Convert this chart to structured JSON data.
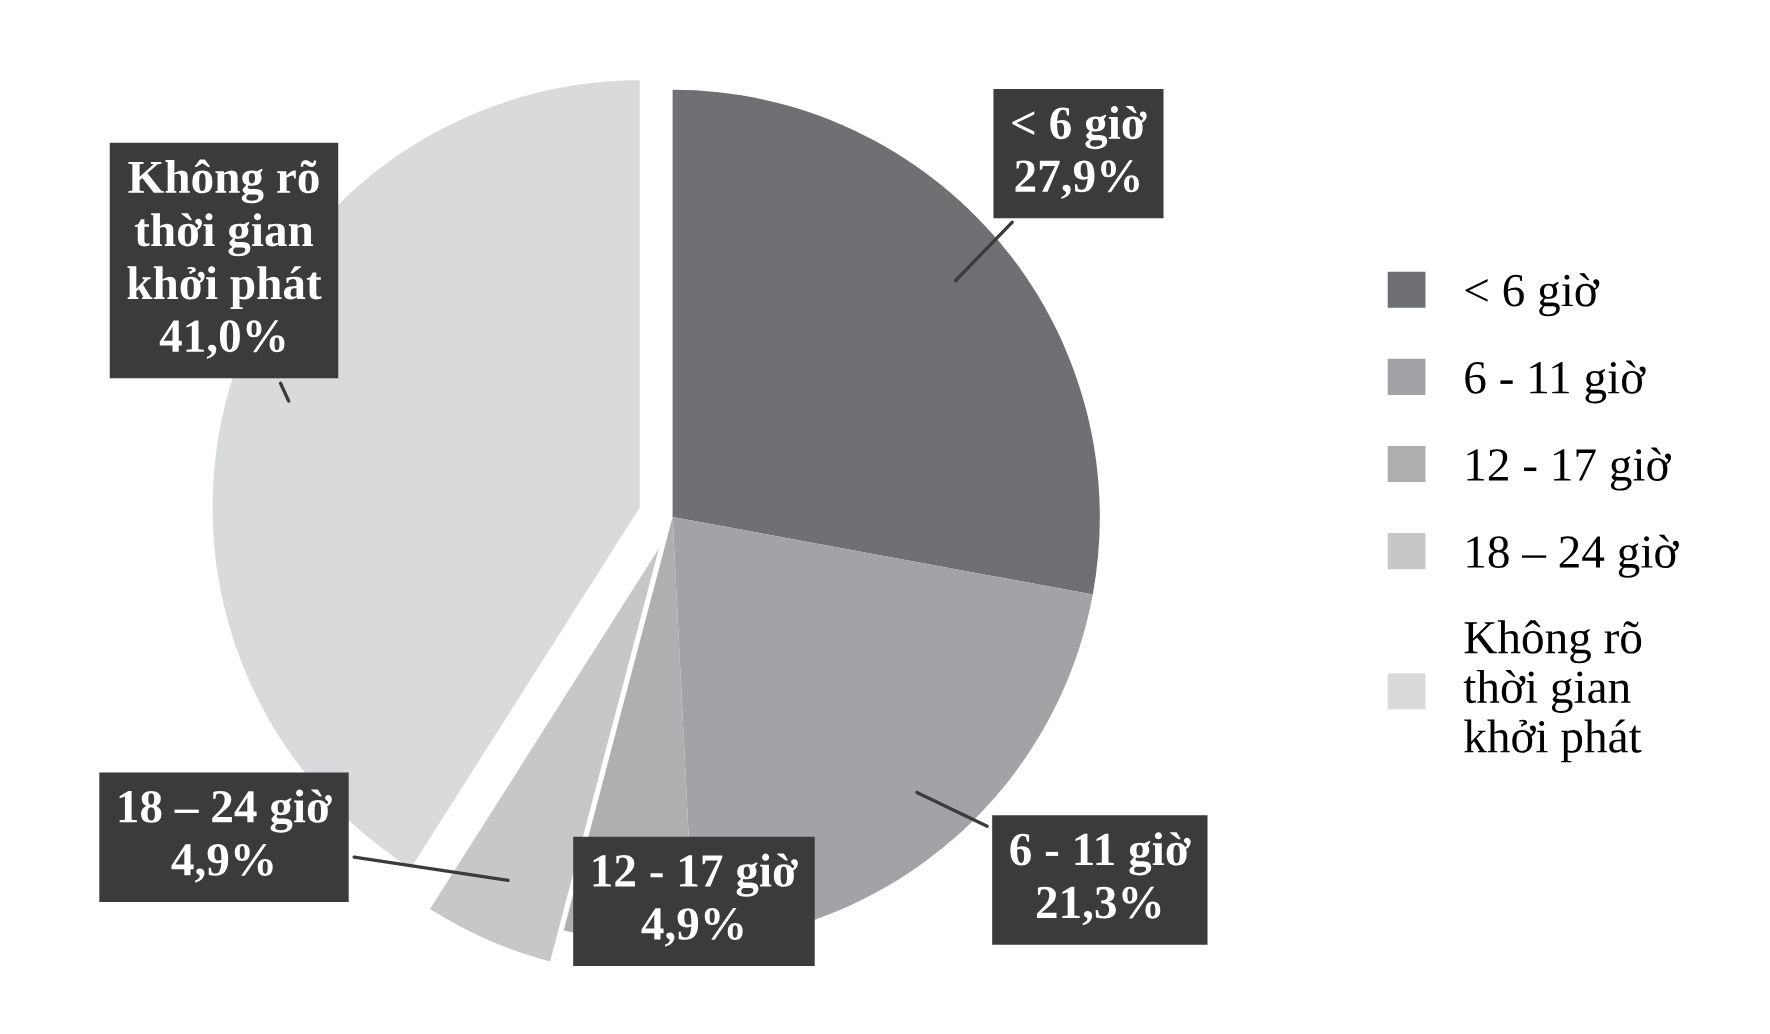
{
  "chart_data": {
    "type": "pie",
    "categories": [
      "< 6 giờ",
      "6 - 11 giờ",
      "12 - 17 giờ",
      "18 – 24 giờ",
      "Không rõ\nthời gian\nkhởi phát"
    ],
    "values": [
      27.9,
      21.3,
      4.9,
      4.9,
      41.0
    ],
    "value_labels": [
      "27,9%",
      "21,3%",
      "4,9%",
      "4,9%",
      "41,0%"
    ],
    "colors": [
      "#6f7073",
      "#a2a3a6",
      "#aeafb1",
      "#c6c7c9",
      "#d9dadb"
    ],
    "data_labels": true,
    "legend": "right"
  }
}
